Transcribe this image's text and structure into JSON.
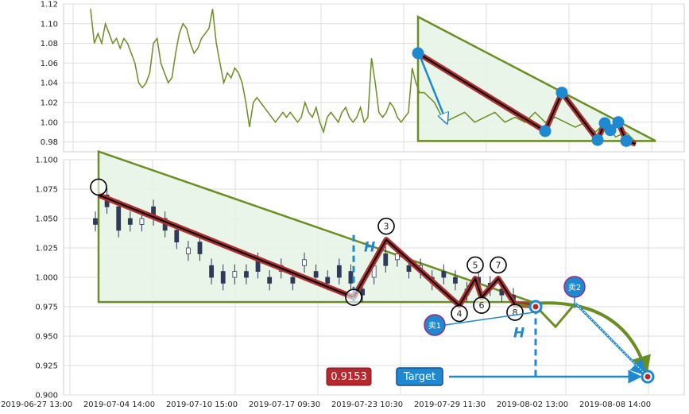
{
  "chart_data": [
    {
      "type": "line",
      "panel": "top",
      "ylim": [
        0.97,
        1.12
      ],
      "y_ticks": [
        "0.98",
        "1.00",
        "1.02",
        "1.04",
        "1.06",
        "1.08",
        "1.10",
        "1.12"
      ],
      "grid": true,
      "line_color": "#6b8e23",
      "series_values": [
        1.115,
        1.08,
        1.09,
        1.08,
        1.1,
        1.09,
        1.08,
        1.085,
        1.075,
        1.085,
        1.08,
        1.07,
        1.06,
        1.04,
        1.035,
        1.04,
        1.05,
        1.08,
        1.085,
        1.06,
        1.05,
        1.04,
        1.045,
        1.07,
        1.09,
        1.1,
        1.095,
        1.08,
        1.07,
        1.075,
        1.085,
        1.09,
        1.095,
        1.115,
        1.08,
        1.06,
        1.04,
        1.05,
        1.045,
        1.055,
        1.05,
        1.04,
        1.02,
        0.995,
        1.02,
        1.025,
        1.02,
        1.015,
        1.01,
        1.005,
        1.0,
        1.005,
        1.01,
        1.005,
        1.01,
        1.005,
        1.0,
        1.005,
        1.02,
        1.01,
        1.005,
        1.015,
        1.0,
        0.99,
        1.005,
        1.01,
        1.005,
        1.0,
        1.01,
        1.015,
        1.005,
        1.0,
        1.005,
        1.015,
        1.0,
        1.005,
        1.065,
        1.04,
        1.01,
        1.005,
        1.01,
        1.02,
        1.015,
        1.005,
        1.0,
        1.005,
        1.01,
        1.055,
        1.04,
        1.03
      ],
      "triangle": {
        "apex_y": 1.107,
        "base_y": 0.981
      },
      "pattern_points": [
        {
          "y": 1.07
        },
        {
          "y": 0.991
        },
        {
          "y": 1.03
        },
        {
          "y": 0.982
        },
        {
          "y": 0.999
        },
        {
          "y": 0.992
        },
        {
          "y": 1.0
        },
        {
          "y": 0.981
        }
      ],
      "fill_color": "#e6f4e6"
    },
    {
      "type": "candlestick",
      "panel": "bottom",
      "ylim": [
        0.9,
        1.1
      ],
      "y_ticks": [
        "0.900",
        "0.925",
        "0.950",
        "0.975",
        "1.000",
        "1.025",
        "1.050",
        "1.075",
        "1.100"
      ],
      "x_ticks": [
        "2019-06-27 13:00",
        "2019-07-04 14:00",
        "2019-07-10 15:00",
        "2019-07-17 09:30",
        "2019-07-23 10:30",
        "2019-07-29 11:30",
        "2019-08-02 13:00",
        "2019-08-08 14:00"
      ],
      "grid": true,
      "candle_color": "#2e3a57",
      "candles_approx": [
        {
          "o": 1.05,
          "c": 1.045
        },
        {
          "o": 1.07,
          "c": 1.06
        },
        {
          "o": 1.06,
          "c": 1.04
        },
        {
          "o": 1.05,
          "c": 1.045
        },
        {
          "o": 1.045,
          "c": 1.05
        },
        {
          "o": 1.06,
          "c": 1.05
        },
        {
          "o": 1.05,
          "c": 1.04
        },
        {
          "o": 1.04,
          "c": 1.03
        },
        {
          "o": 1.02,
          "c": 1.025
        },
        {
          "o": 1.03,
          "c": 1.02
        },
        {
          "o": 1.01,
          "c": 1.0
        },
        {
          "o": 1.005,
          "c": 0.995
        },
        {
          "o": 1.0,
          "c": 1.005
        },
        {
          "o": 1.005,
          "c": 1.0
        },
        {
          "o": 1.015,
          "c": 1.005
        },
        {
          "o": 1.0,
          "c": 0.995
        },
        {
          "o": 1.005,
          "c": 1.01
        },
        {
          "o": 1.0,
          "c": 0.995
        },
        {
          "o": 1.01,
          "c": 1.015
        },
        {
          "o": 1.005,
          "c": 1.0
        },
        {
          "o": 1.0,
          "c": 0.995
        },
        {
          "o": 1.01,
          "c": 1.0
        },
        {
          "o": 1.005,
          "c": 0.995
        },
        {
          "o": 0.99,
          "c": 0.985
        },
        {
          "o": 1.0,
          "c": 1.01
        },
        {
          "o": 1.02,
          "c": 1.01
        },
        {
          "o": 1.015,
          "c": 1.02
        },
        {
          "o": 1.01,
          "c": 1.005
        },
        {
          "o": 1.005,
          "c": 1.01
        },
        {
          "o": 1.0,
          "c": 0.995
        },
        {
          "o": 1.005,
          "c": 1.0
        },
        {
          "o": 1.0,
          "c": 0.995
        },
        {
          "o": 0.985,
          "c": 0.99
        },
        {
          "o": 1.0,
          "c": 0.995
        },
        {
          "o": 0.995,
          "c": 0.99
        },
        {
          "o": 0.99,
          "c": 0.985
        },
        {
          "o": 0.985,
          "c": 0.98
        }
      ],
      "triangle": {
        "apex_y": 1.107,
        "base_y": 0.979
      },
      "pattern_points": [
        {
          "label": "",
          "y": 1.07
        },
        {
          "label": "",
          "y": 0.983
        },
        {
          "label": "3",
          "y": 1.032
        },
        {
          "label": "4",
          "y": 0.976
        },
        {
          "label": "5",
          "y": 0.999
        },
        {
          "label": "6",
          "y": 0.983
        },
        {
          "label": "7",
          "y": 0.999
        },
        {
          "label": "8",
          "y": 0.977
        }
      ],
      "projection_points": [
        0.977,
        0.975,
        0.958,
        0.978,
        0.978,
        0.915
      ],
      "annotations": {
        "h_label_1": "H",
        "h_label_2": "H",
        "sell1_label": "卖1",
        "sell2_label": "卖2",
        "target_label": "Target",
        "target_value": "0.9153"
      },
      "colors": {
        "triangle_line": "#6b8e23",
        "triangle_fill": "#e6f4e6",
        "pattern_line": "#b03030",
        "pattern_core": "#000000",
        "blue": "#1e88d0",
        "target_box": "#b7282e"
      }
    }
  ]
}
